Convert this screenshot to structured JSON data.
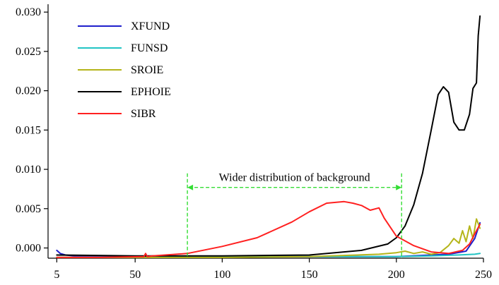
{
  "chart_data": {
    "type": "line",
    "title": "",
    "xlabel": "",
    "ylabel": "",
    "xlim": [
      0,
      250
    ],
    "ylim": [
      -0.0013,
      0.031
    ],
    "x_ticks": [
      5,
      50,
      100,
      150,
      200,
      250
    ],
    "y_ticks": [
      0.0,
      0.005,
      0.01,
      0.015,
      0.02,
      0.025,
      0.03
    ],
    "y_tick_labels": [
      "0.000",
      "0.005",
      "0.010",
      "0.015",
      "0.020",
      "0.025",
      "0.030"
    ],
    "grid": false,
    "legend_position": "top-left",
    "series": [
      {
        "name": "XFUND",
        "color": "#1f1fcc",
        "x": [
          5,
          7,
          10,
          15,
          20,
          30,
          50,
          100,
          150,
          200,
          230,
          240,
          245,
          248
        ],
        "y": [
          -0.0003,
          -0.0007,
          -0.0009,
          -0.001,
          -0.001,
          -0.001,
          -0.0011,
          -0.0011,
          -0.0011,
          -0.0011,
          -0.0008,
          -0.0004,
          0.0012,
          0.0032
        ]
      },
      {
        "name": "FUNSD",
        "color": "#22c4c4",
        "x": [
          5,
          50,
          100,
          150,
          200,
          220,
          235,
          245,
          248
        ],
        "y": [
          -0.0012,
          -0.0012,
          -0.0011,
          -0.0011,
          -0.0011,
          -0.001,
          -0.0009,
          -0.0008,
          -0.0007
        ]
      },
      {
        "name": "SROIE",
        "color": "#b5b51a",
        "x": [
          5,
          50,
          100,
          150,
          190,
          200,
          205,
          210,
          215,
          220,
          225,
          230,
          233,
          236,
          238,
          240,
          242,
          244,
          246,
          248
        ],
        "y": [
          -0.0012,
          -0.0012,
          -0.0012,
          -0.0011,
          -0.0008,
          -0.0006,
          -0.0004,
          -0.0007,
          -0.0005,
          -0.0008,
          -0.0006,
          0.0003,
          0.0012,
          0.0006,
          0.0022,
          0.0008,
          0.0028,
          0.0012,
          0.0037,
          0.0025
        ]
      },
      {
        "name": "EPHOIE",
        "color": "#000000",
        "x": [
          5,
          50,
          100,
          150,
          180,
          195,
          200,
          205,
          210,
          215,
          220,
          224,
          227,
          230,
          233,
          236,
          239,
          242,
          244,
          246,
          247,
          248
        ],
        "y": [
          -0.0009,
          -0.001,
          -0.001,
          -0.0009,
          -0.0003,
          0.0005,
          0.0013,
          0.0028,
          0.0055,
          0.0095,
          0.015,
          0.0195,
          0.0205,
          0.0198,
          0.016,
          0.015,
          0.015,
          0.017,
          0.0203,
          0.021,
          0.027,
          0.0295
        ]
      },
      {
        "name": "SIBR",
        "color": "#ff2020",
        "x": [
          5,
          30,
          55,
          56,
          57,
          60,
          80,
          100,
          120,
          140,
          150,
          160,
          170,
          175,
          180,
          185,
          190,
          193,
          200,
          210,
          220,
          230,
          238,
          242,
          245,
          248
        ],
        "y": [
          -0.0012,
          -0.0012,
          -0.0011,
          -0.0007,
          -0.0011,
          -0.001,
          -0.0007,
          0.0002,
          0.0013,
          0.0033,
          0.0046,
          0.0057,
          0.0059,
          0.0057,
          0.0054,
          0.0048,
          0.0051,
          0.0038,
          0.0015,
          0.0003,
          -0.0005,
          -0.0007,
          -0.0003,
          0.0005,
          0.0018,
          0.003
        ]
      }
    ],
    "annotation": {
      "text": "Wider distribution of background",
      "x_start": 80,
      "x_end": 203,
      "y": 0.0077,
      "color": "#33dd33"
    }
  }
}
